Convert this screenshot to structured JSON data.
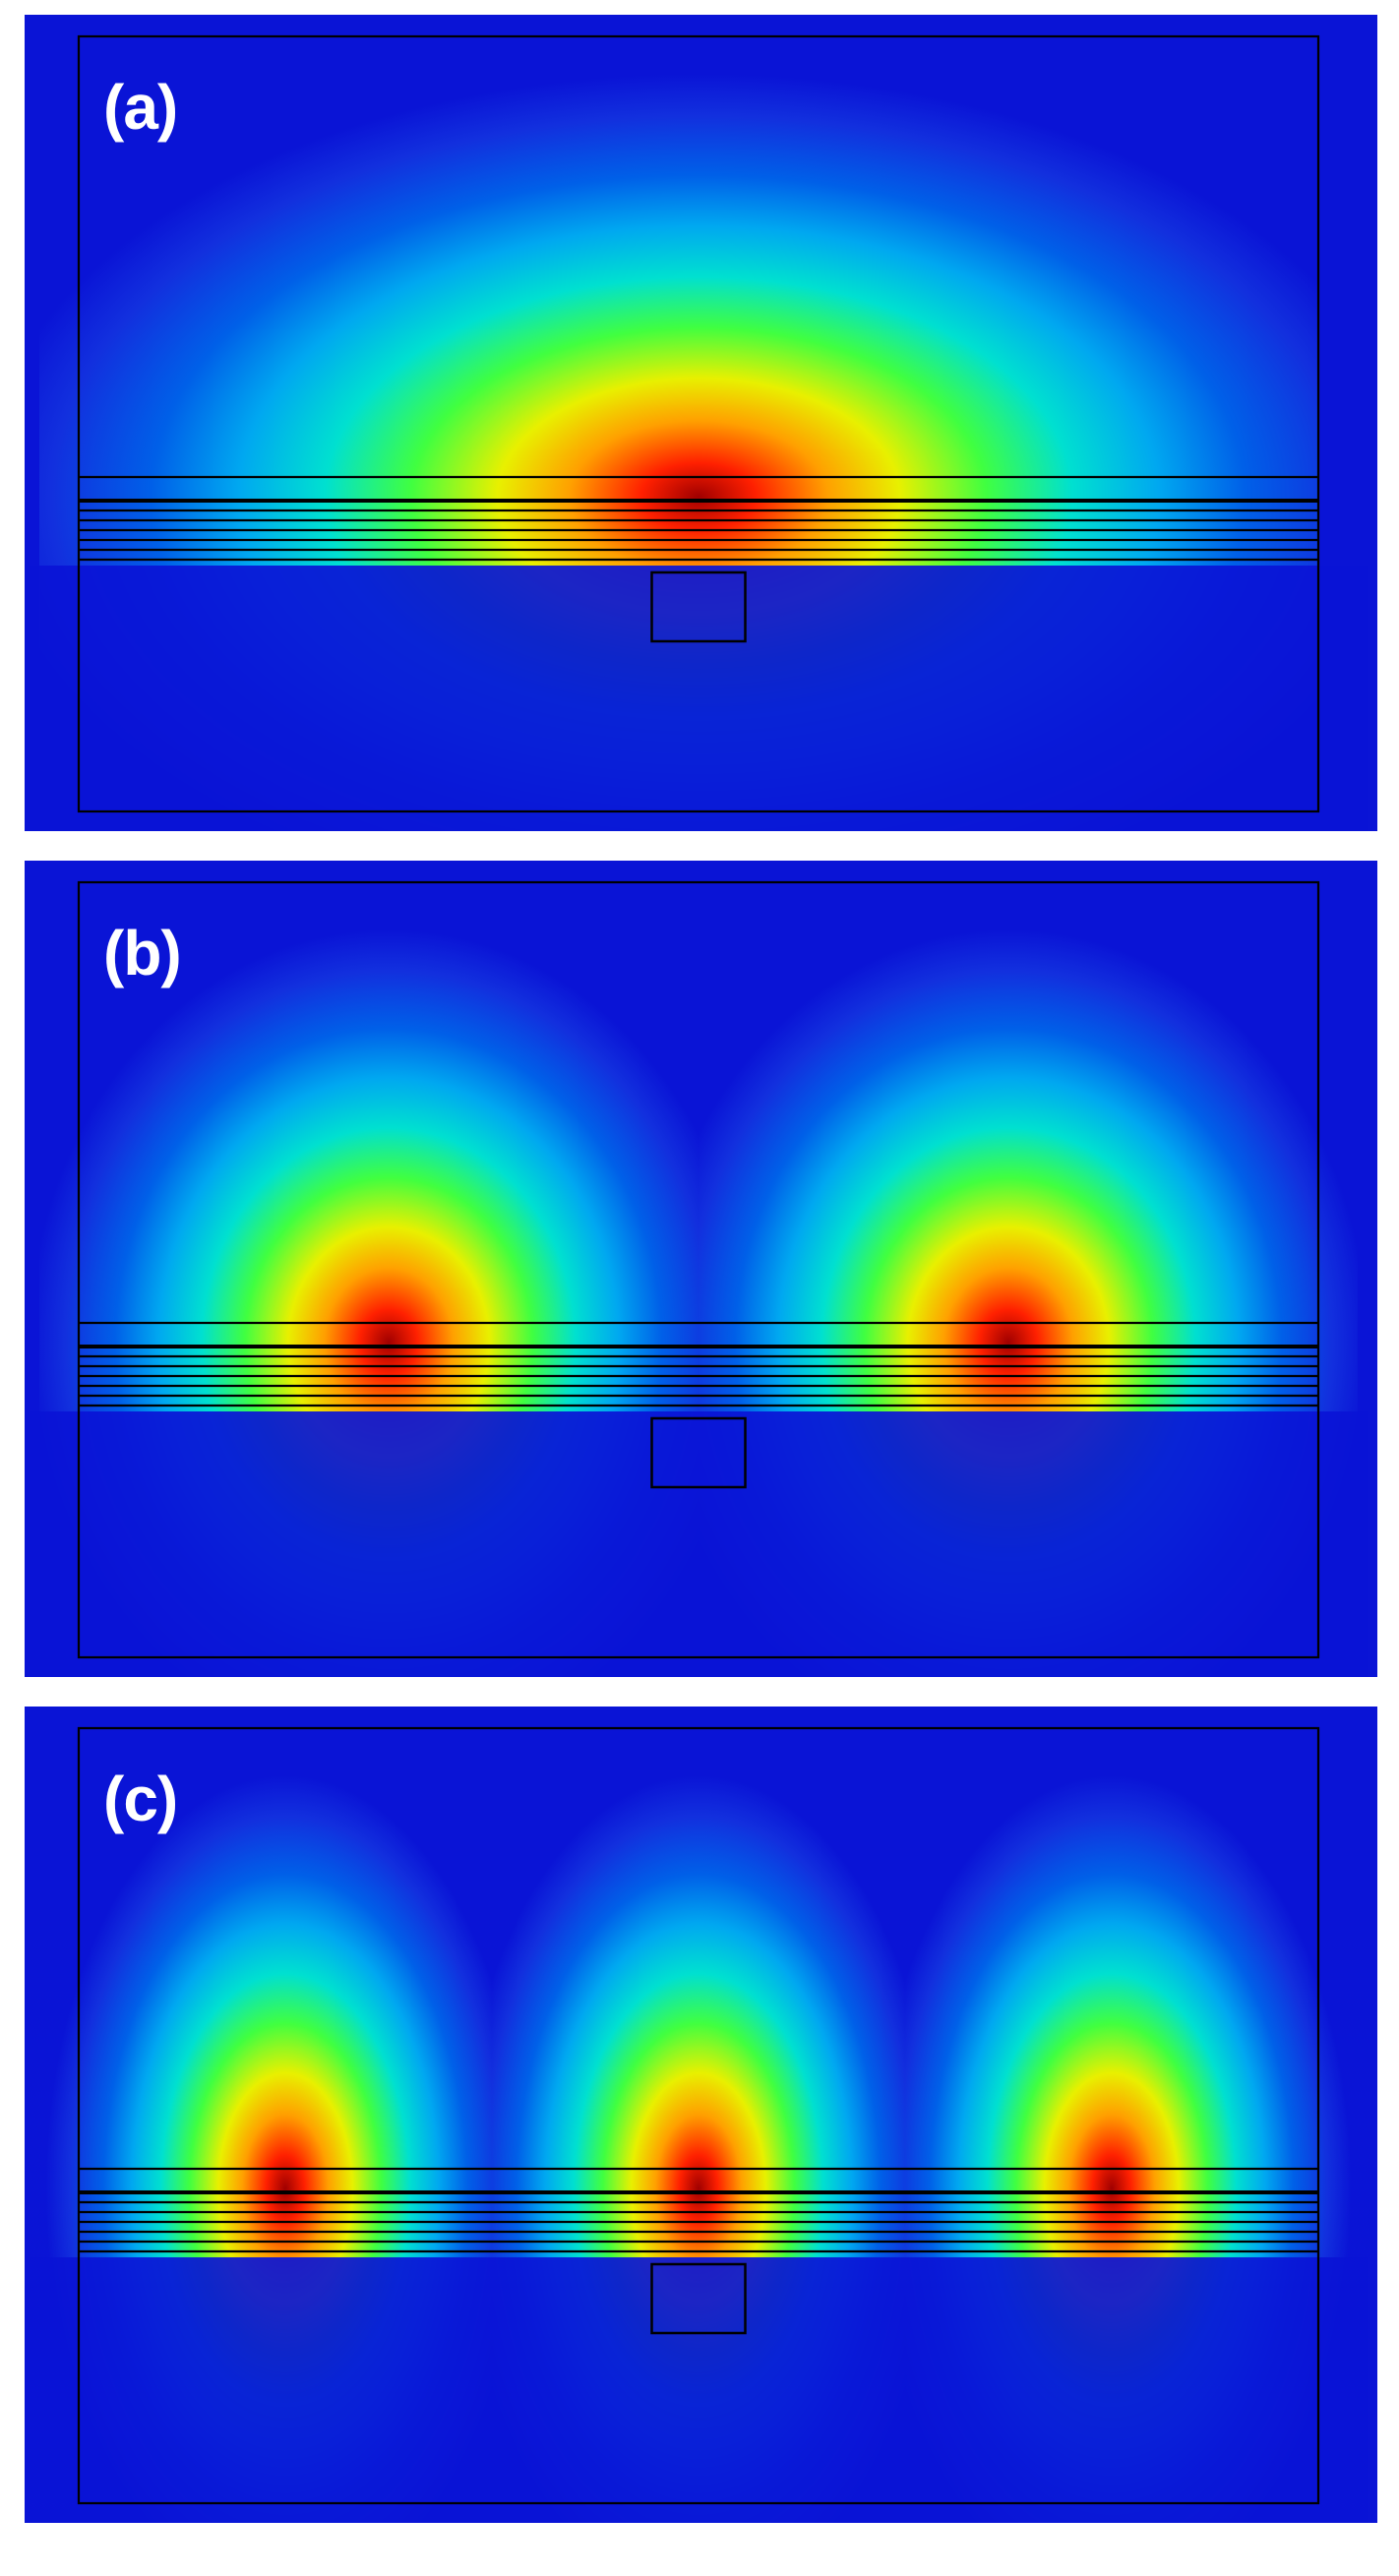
{
  "figure": {
    "panels": [
      {
        "label": "(a)",
        "mode_lobes": 1
      },
      {
        "label": "(b)",
        "mode_lobes": 2
      },
      {
        "label": "(c)",
        "mode_lobes": 3
      }
    ],
    "colormap": "jet",
    "background_color": "#0a14d6",
    "outline_color": "#000000",
    "label_color": "#ffffff"
  }
}
